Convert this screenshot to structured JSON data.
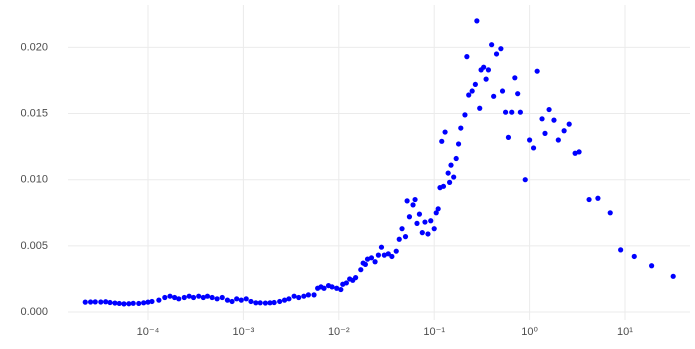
{
  "chart_data": {
    "type": "scatter",
    "log_x": true,
    "grid": true,
    "color": "#0000ff",
    "xlim": [
      1.45e-05,
      48
    ],
    "ylim": [
      -0.0006,
      0.0232
    ],
    "xticks": [
      {
        "value": 0.0001,
        "label": "10⁻⁴"
      },
      {
        "value": 0.001,
        "label": "10⁻³"
      },
      {
        "value": 0.01,
        "label": "10⁻²"
      },
      {
        "value": 0.1,
        "label": "10⁻¹"
      },
      {
        "value": 1,
        "label": "10⁰"
      },
      {
        "value": 10,
        "label": "10¹"
      }
    ],
    "yticks": [
      {
        "value": 0,
        "label": "0.000"
      },
      {
        "value": 0.005,
        "label": "0.005"
      },
      {
        "value": 0.01,
        "label": "0.010"
      },
      {
        "value": 0.015,
        "label": "0.015"
      },
      {
        "value": 0.02,
        "label": "0.020"
      }
    ],
    "x": [
      2.2e-05,
      2.5e-05,
      2.8e-05,
      3.2e-05,
      3.6e-05,
      4e-05,
      4.5e-05,
      5e-05,
      5.6e-05,
      6.3e-05,
      7e-05,
      8e-05,
      9e-05,
      0.0001,
      0.00011,
      0.00013,
      0.00015,
      0.00017,
      0.00019,
      0.00021,
      0.00024,
      0.00027,
      0.0003,
      0.00034,
      0.00038,
      0.00042,
      0.00047,
      0.00053,
      0.0006,
      0.00068,
      0.00076,
      0.00085,
      0.00095,
      0.00107,
      0.0012,
      0.00135,
      0.0015,
      0.0017,
      0.0019,
      0.0021,
      0.0024,
      0.0027,
      0.003,
      0.0034,
      0.0038,
      0.0043,
      0.0048,
      0.0055,
      0.006,
      0.0065,
      0.007,
      0.0078,
      0.0085,
      0.0095,
      0.0105,
      0.011,
      0.012,
      0.013,
      0.014,
      0.015,
      0.017,
      0.018,
      0.019,
      0.02,
      0.022,
      0.024,
      0.026,
      0.028,
      0.03,
      0.033,
      0.036,
      0.04,
      0.043,
      0.046,
      0.05,
      0.052,
      0.055,
      0.06,
      0.063,
      0.066,
      0.07,
      0.075,
      0.08,
      0.086,
      0.092,
      0.1,
      0.105,
      0.11,
      0.115,
      0.12,
      0.125,
      0.13,
      0.14,
      0.145,
      0.15,
      0.16,
      0.17,
      0.18,
      0.19,
      0.21,
      0.22,
      0.23,
      0.25,
      0.27,
      0.28,
      0.3,
      0.31,
      0.33,
      0.35,
      0.37,
      0.4,
      0.42,
      0.45,
      0.5,
      0.52,
      0.56,
      0.6,
      0.65,
      0.7,
      0.75,
      0.8,
      0.9,
      1.0,
      1.1,
      1.2,
      1.35,
      1.45,
      1.6,
      1.8,
      2.0,
      2.3,
      2.6,
      3.0,
      3.3,
      4.2,
      5.2,
      7.0,
      9.0,
      12.5,
      19,
      32
    ],
    "values": [
      0.00075,
      0.00076,
      0.00077,
      0.00076,
      0.00078,
      0.00072,
      0.00068,
      0.00065,
      0.00062,
      0.00063,
      0.00066,
      0.00065,
      0.0007,
      0.00075,
      0.0008,
      0.0009,
      0.0011,
      0.0012,
      0.0011,
      0.001,
      0.0011,
      0.0012,
      0.0011,
      0.0012,
      0.0011,
      0.0012,
      0.0011,
      0.001,
      0.0011,
      0.0009,
      0.0008,
      0.001,
      0.0009,
      0.001,
      0.0008,
      0.0007,
      0.0007,
      0.00068,
      0.0007,
      0.00072,
      0.0008,
      0.0009,
      0.001,
      0.0012,
      0.0011,
      0.0012,
      0.0013,
      0.0013,
      0.0018,
      0.0019,
      0.0018,
      0.002,
      0.0019,
      0.0018,
      0.0017,
      0.0021,
      0.0022,
      0.0025,
      0.0024,
      0.0026,
      0.0032,
      0.0037,
      0.0036,
      0.004,
      0.0041,
      0.0038,
      0.0043,
      0.0049,
      0.0043,
      0.0044,
      0.0042,
      0.0046,
      0.0055,
      0.0063,
      0.0057,
      0.0084,
      0.0072,
      0.0081,
      0.0085,
      0.0067,
      0.0074,
      0.006,
      0.0068,
      0.0059,
      0.0069,
      0.0063,
      0.0075,
      0.0078,
      0.0094,
      0.0129,
      0.0095,
      0.0136,
      0.0105,
      0.0098,
      0.0111,
      0.0102,
      0.0116,
      0.0127,
      0.0139,
      0.0149,
      0.0193,
      0.0164,
      0.0167,
      0.0172,
      0.022,
      0.0154,
      0.0183,
      0.0185,
      0.0176,
      0.0183,
      0.0202,
      0.0163,
      0.0195,
      0.0199,
      0.0167,
      0.0151,
      0.0132,
      0.0151,
      0.0177,
      0.0165,
      0.0151,
      0.01,
      0.013,
      0.0124,
      0.0182,
      0.0146,
      0.0135,
      0.0153,
      0.0145,
      0.013,
      0.0137,
      0.0142,
      0.012,
      0.0121,
      0.0085,
      0.0086,
      0.0075,
      0.0047,
      0.0042,
      0.0035,
      0.0027
    ]
  }
}
